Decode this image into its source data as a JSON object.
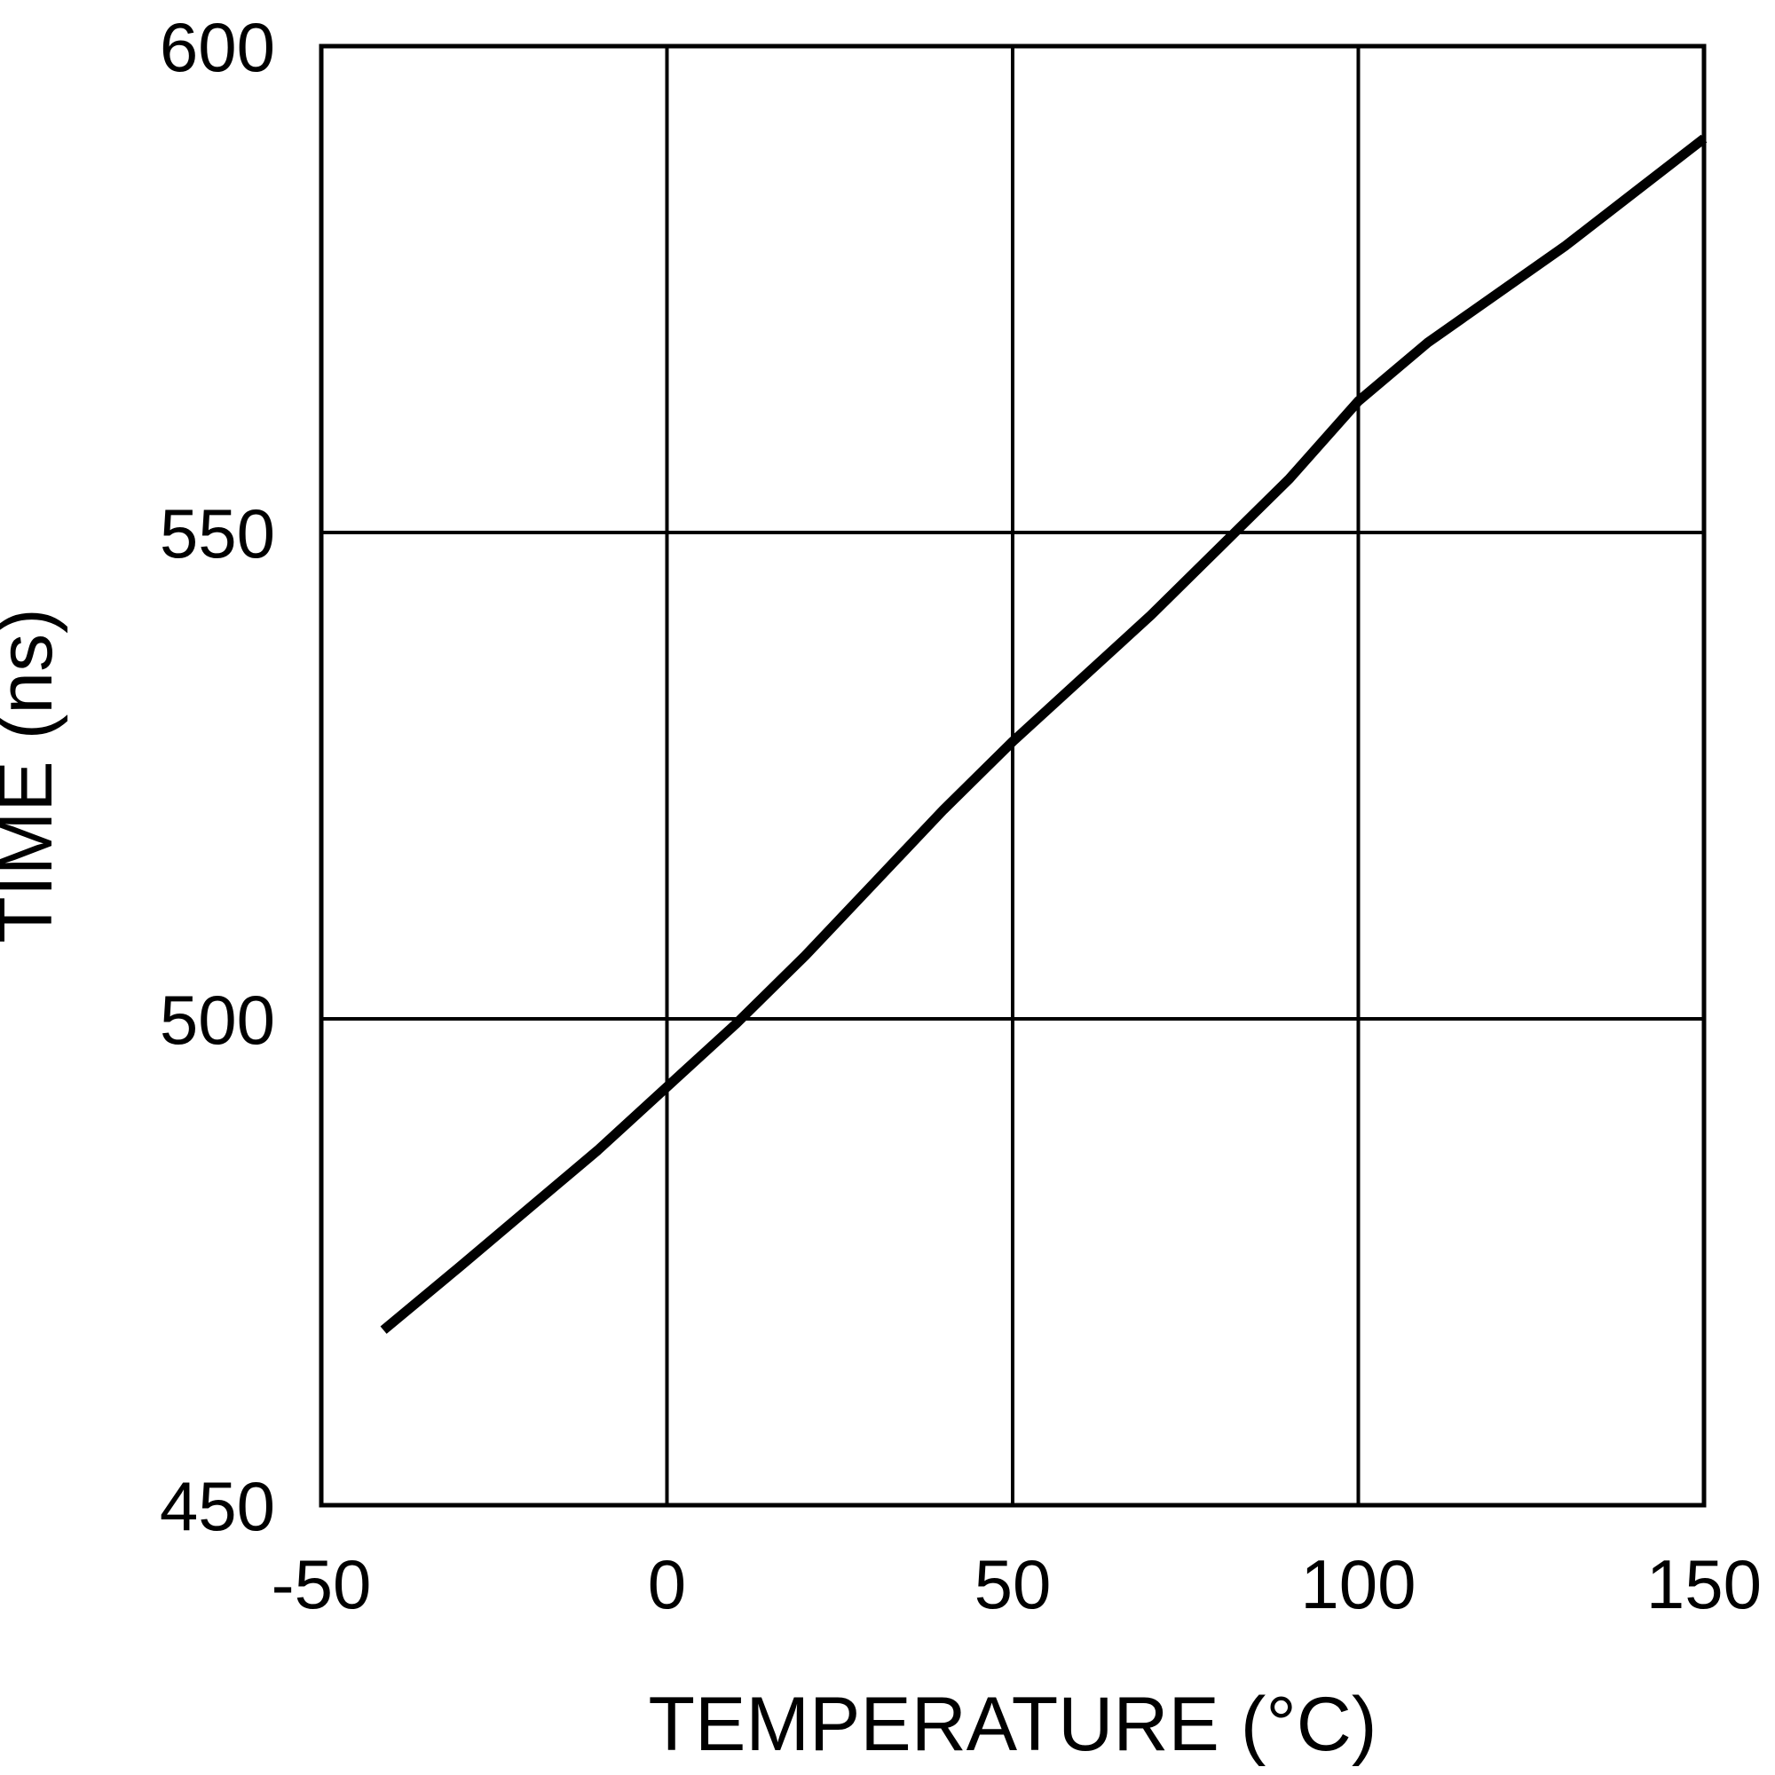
{
  "chart_data": {
    "type": "line",
    "xlabel": "TEMPERATURE (°C)",
    "ylabel": "TIME (ns)",
    "xlim": [
      -50,
      150
    ],
    "ylim": [
      450,
      600
    ],
    "x_ticks": [
      -50,
      0,
      50,
      100,
      150
    ],
    "y_ticks": [
      450,
      500,
      550,
      600
    ],
    "x_tick_labels": [
      "-50",
      "0",
      "50",
      "100",
      "150"
    ],
    "y_tick_labels": [
      "450",
      "500",
      "550",
      "600"
    ],
    "grid": true,
    "line_color": "#000000",
    "series": [
      {
        "x": [
          -41,
          -30,
          -20,
          -10,
          0,
          10,
          20,
          30,
          40,
          50,
          60,
          70,
          80,
          90,
          100,
          110,
          120,
          130,
          140,
          150
        ],
        "y": [
          468,
          474.5,
          480.5,
          486.5,
          493,
          499.5,
          506.5,
          514,
          521.5,
          528.5,
          535,
          541.5,
          548.5,
          555.5,
          563.5,
          569.5,
          574.5,
          579.5,
          585,
          590.5
        ]
      }
    ]
  }
}
